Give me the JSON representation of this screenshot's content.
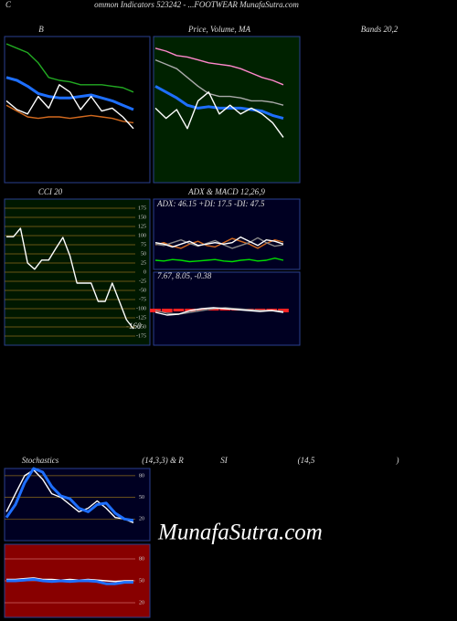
{
  "header": {
    "letter": "C",
    "title": "ommon  Indicators 523242  - ...FOOTWEAR MunafaSutra.com"
  },
  "watermark": "MunafaSutra.com",
  "chart_data": [
    {
      "type": "line",
      "title": "B",
      "subtitle": "Bands 20,2",
      "background": "#000000",
      "ylim": [
        0,
        100
      ],
      "series": [
        {
          "color": "#22aa22",
          "values": [
            95,
            92,
            89,
            82,
            72,
            70,
            69,
            67,
            67,
            67,
            66,
            65,
            62
          ]
        },
        {
          "color": "#1e6fff",
          "values": [
            72,
            70,
            66,
            61,
            59,
            58,
            58,
            59,
            60,
            58,
            56,
            53,
            50
          ]
        },
        {
          "color": "#d2691e",
          "values": [
            53,
            49,
            45,
            44,
            45,
            45,
            44,
            45,
            46,
            45,
            44,
            42,
            41
          ]
        },
        {
          "color": "#ffffff",
          "values": [
            56,
            50,
            47,
            59,
            51,
            67,
            62,
            50,
            59,
            49,
            51,
            45,
            37
          ]
        }
      ]
    },
    {
      "type": "line",
      "title": "Price,  Volume,  MA",
      "background": "#002200",
      "ylim": [
        0,
        100
      ],
      "series": [
        {
          "color": "#ff88cc",
          "values": [
            92,
            90,
            87,
            86,
            84,
            82,
            81,
            80,
            78,
            75,
            72,
            70,
            67
          ]
        },
        {
          "color": "#aaaaaa",
          "values": [
            84,
            81,
            78,
            72,
            66,
            61,
            59,
            59,
            58,
            56,
            56,
            55,
            53
          ]
        },
        {
          "color": "#1e6fff",
          "values": [
            66,
            62,
            58,
            53,
            51,
            52,
            51,
            51,
            51,
            50,
            49,
            46,
            44
          ]
        },
        {
          "color": "#ffffff",
          "values": [
            51,
            44,
            50,
            37,
            56,
            62,
            47,
            53,
            47,
            51,
            47,
            41,
            31
          ]
        }
      ]
    },
    {
      "type": "line",
      "title": "CCI 20",
      "annotation": "-160",
      "background": "#001800",
      "grid": true,
      "grid_color": "#8b6a1a",
      "ylim": [
        -200,
        200
      ],
      "yticks": [
        175,
        150,
        125,
        100,
        75,
        50,
        25,
        0,
        -25,
        -50,
        -75,
        -100,
        -125,
        -150,
        -175
      ],
      "series": [
        {
          "color": "#ffffff",
          "values": [
            97,
            97,
            120,
            25,
            8,
            33,
            33,
            65,
            95,
            45,
            -30,
            -30,
            -30,
            -80,
            -80,
            -30,
            -80,
            -130,
            -155
          ]
        }
      ]
    },
    {
      "type": "line",
      "title": "ADX  & MACD 12,26,9",
      "subtitle": "ADX: 46.15 +DI: 17.5 -DI: 47.5",
      "background": "#000022",
      "ylim": [
        0,
        100
      ],
      "series": [
        {
          "color": "#00dd00",
          "values": [
            13,
            12,
            14,
            13,
            11,
            12,
            13,
            14,
            12,
            11,
            13,
            14,
            12,
            13,
            16,
            13
          ]
        },
        {
          "color": "#d2691e",
          "values": [
            35,
            38,
            33,
            30,
            36,
            40,
            34,
            32,
            38,
            44,
            40,
            36,
            30,
            37,
            42,
            39
          ]
        },
        {
          "color": "#888888",
          "values": [
            36,
            34,
            38,
            42,
            37,
            33,
            37,
            41,
            35,
            30,
            34,
            38,
            45,
            38,
            33,
            35
          ]
        },
        {
          "color": "#ffffff",
          "values": [
            38,
            36,
            32,
            36,
            40,
            34,
            36,
            38,
            36,
            38,
            46,
            40,
            34,
            42,
            40,
            36
          ]
        }
      ]
    },
    {
      "type": "line",
      "title": "7.67,  8.05,  -0.38",
      "background": "#000022",
      "ylim": [
        -10,
        10
      ],
      "series": [
        {
          "type": "bar",
          "color": "#ff2222",
          "values": [
            -1,
            -1,
            -0.75,
            -0.75,
            -0.5,
            -0.5,
            -0.5,
            -0.5,
            -0.5,
            -0.5,
            -0.75,
            -1
          ]
        },
        {
          "color": "#888888",
          "values": [
            -0.5,
            -1.25,
            -1.5,
            -1,
            -0.5,
            0,
            0.25,
            0,
            -0.25,
            -0.5,
            -0.5,
            -0.75
          ]
        },
        {
          "color": "#ffffff",
          "values": [
            -1,
            -1.75,
            -1.5,
            -0.5,
            0,
            0.25,
            0,
            -0.25,
            -0.5,
            -0.75,
            -0.5,
            -1
          ]
        }
      ]
    },
    {
      "type": "line",
      "title": "Stochastics",
      "subtitle": "(14,3,3) & R",
      "background": "#000022",
      "grid": true,
      "grid_color": "#8b6a1a",
      "ylim": [
        -10,
        90
      ],
      "yticks": [
        80,
        50,
        20
      ],
      "series": [
        {
          "color": "#ffffff",
          "values": [
            30,
            55,
            80,
            88,
            75,
            55,
            50,
            40,
            30,
            35,
            45,
            35,
            22,
            20,
            15
          ]
        },
        {
          "color": "#1e6fff",
          "values": [
            22,
            40,
            70,
            90,
            85,
            65,
            52,
            48,
            35,
            30,
            40,
            42,
            28,
            20,
            18
          ]
        }
      ]
    },
    {
      "type": "line",
      "title": "SI",
      "subtitle": "(14,5",
      "note": ")",
      "background": "#880000",
      "grid": true,
      "grid_color": "#cc6666",
      "ylim": [
        0,
        100
      ],
      "yticks": [
        80,
        50,
        20
      ],
      "series": [
        {
          "color": "#ffffff",
          "values": [
            52,
            52,
            53,
            54,
            52,
            52,
            51,
            52,
            51,
            52,
            51,
            50,
            49,
            50,
            50
          ]
        },
        {
          "color": "#1e6fff",
          "values": [
            50,
            50,
            51,
            52,
            50,
            49,
            50,
            49,
            50,
            50,
            49,
            46,
            46,
            48,
            48
          ]
        }
      ]
    }
  ]
}
